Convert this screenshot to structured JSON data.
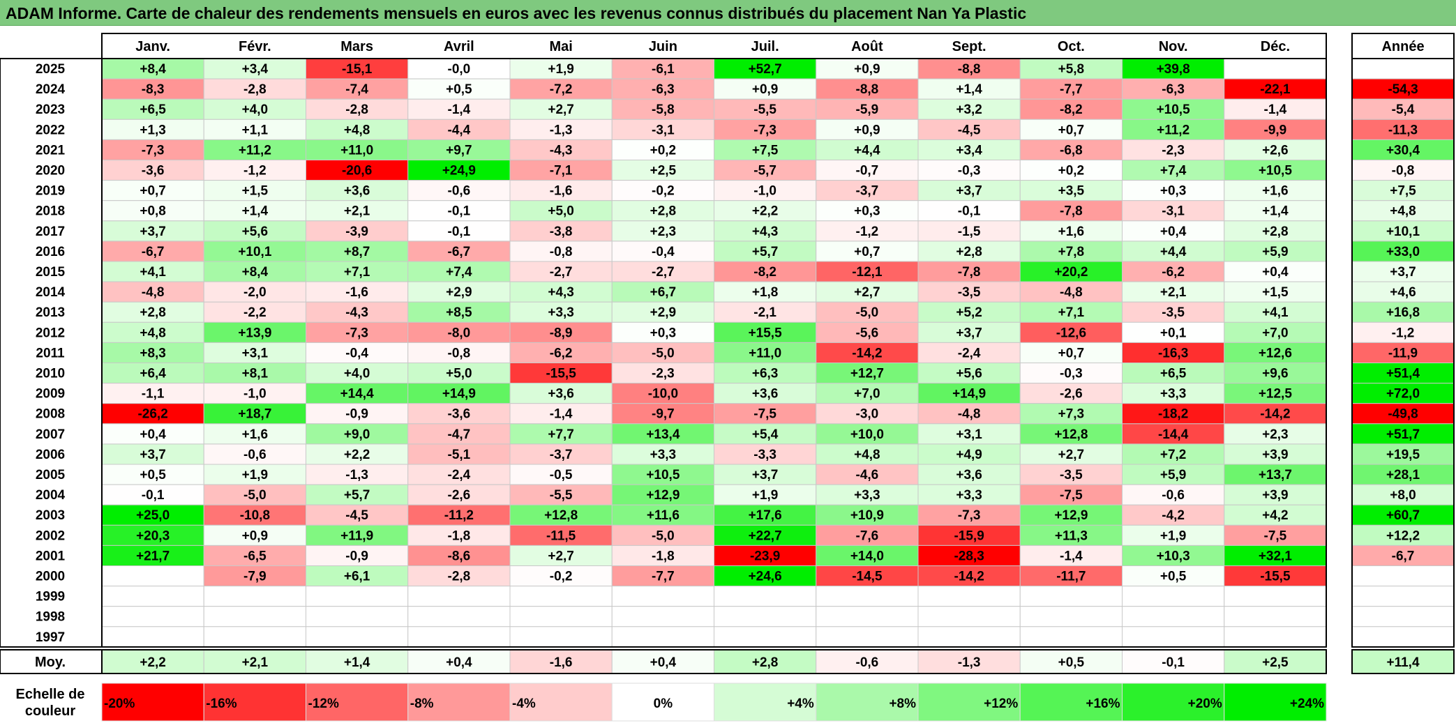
{
  "title": "ADAM Informe. Carte de chaleur des rendements mensuels en euros avec les revenus connus distribués du placement Nan Ya Plastic",
  "chart_data": {
    "type": "heatmap",
    "months": [
      "Janv.",
      "Févr.",
      "Mars",
      "Avril",
      "Mai",
      "Juin",
      "Juil.",
      "Août",
      "Sept.",
      "Oct.",
      "Nov.",
      "Déc."
    ],
    "year_header": "Année",
    "rows": [
      {
        "year": "2025",
        "values": [
          "+8,4",
          "+3,4",
          "-15,1",
          "-0,0",
          "+1,9",
          "-6,1",
          "+52,7",
          "+0,9",
          "-8,8",
          "+5,8",
          "+39,8",
          ""
        ],
        "annual": ""
      },
      {
        "year": "2024",
        "values": [
          "-8,3",
          "-2,8",
          "-7,4",
          "+0,5",
          "-7,2",
          "-6,3",
          "+0,9",
          "-8,8",
          "+1,4",
          "-7,7",
          "-6,3",
          "-22,1"
        ],
        "annual": "-54,3"
      },
      {
        "year": "2023",
        "values": [
          "+6,5",
          "+4,0",
          "-2,8",
          "-1,4",
          "+2,7",
          "-5,8",
          "-5,5",
          "-5,9",
          "+3,2",
          "-8,2",
          "+10,5",
          "-1,4"
        ],
        "annual": "-5,4"
      },
      {
        "year": "2022",
        "values": [
          "+1,3",
          "+1,1",
          "+4,8",
          "-4,4",
          "-1,3",
          "-3,1",
          "-7,3",
          "+0,9",
          "-4,5",
          "+0,7",
          "+11,2",
          "-9,9"
        ],
        "annual": "-11,3"
      },
      {
        "year": "2021",
        "values": [
          "-7,3",
          "+11,2",
          "+11,0",
          "+9,7",
          "-4,3",
          "+0,2",
          "+7,5",
          "+4,4",
          "+3,4",
          "-6,8",
          "-2,3",
          "+2,6"
        ],
        "annual": "+30,4"
      },
      {
        "year": "2020",
        "values": [
          "-3,6",
          "-1,2",
          "-20,6",
          "+24,9",
          "-7,1",
          "+2,5",
          "-5,7",
          "-0,7",
          "-0,3",
          "+0,2",
          "+7,4",
          "+10,5"
        ],
        "annual": "-0,8"
      },
      {
        "year": "2019",
        "values": [
          "+0,7",
          "+1,5",
          "+3,6",
          "-0,6",
          "-1,6",
          "-0,2",
          "-1,0",
          "-3,7",
          "+3,7",
          "+3,5",
          "+0,3",
          "+1,6"
        ],
        "annual": "+7,5"
      },
      {
        "year": "2018",
        "values": [
          "+0,8",
          "+1,4",
          "+2,1",
          "-0,1",
          "+5,0",
          "+2,8",
          "+2,2",
          "+0,3",
          "-0,1",
          "-7,8",
          "-3,1",
          "+1,4"
        ],
        "annual": "+4,8"
      },
      {
        "year": "2017",
        "values": [
          "+3,7",
          "+5,6",
          "-3,9",
          "-0,1",
          "-3,8",
          "+2,3",
          "+4,3",
          "-1,2",
          "-1,5",
          "+1,6",
          "+0,4",
          "+2,8"
        ],
        "annual": "+10,1"
      },
      {
        "year": "2016",
        "values": [
          "-6,7",
          "+10,1",
          "+8,7",
          "-6,7",
          "-0,8",
          "-0,4",
          "+5,7",
          "+0,7",
          "+2,8",
          "+7,8",
          "+4,4",
          "+5,9"
        ],
        "annual": "+33,0"
      },
      {
        "year": "2015",
        "values": [
          "+4,1",
          "+8,4",
          "+7,1",
          "+7,4",
          "-2,7",
          "-2,7",
          "-8,2",
          "-12,1",
          "-7,8",
          "+20,2",
          "-6,2",
          "+0,4"
        ],
        "annual": "+3,7"
      },
      {
        "year": "2014",
        "values": [
          "-4,8",
          "-2,0",
          "-1,6",
          "+2,9",
          "+4,3",
          "+6,7",
          "+1,8",
          "+2,7",
          "-3,5",
          "-4,8",
          "+2,1",
          "+1,5"
        ],
        "annual": "+4,6"
      },
      {
        "year": "2013",
        "values": [
          "+2,8",
          "-2,2",
          "-4,3",
          "+8,5",
          "+3,3",
          "+2,9",
          "-2,1",
          "-5,0",
          "+5,2",
          "+7,1",
          "-3,5",
          "+4,1"
        ],
        "annual": "+16,8"
      },
      {
        "year": "2012",
        "values": [
          "+4,8",
          "+13,9",
          "-7,3",
          "-8,0",
          "-8,9",
          "+0,3",
          "+15,5",
          "-5,6",
          "+3,7",
          "-12,6",
          "+0,1",
          "+7,0"
        ],
        "annual": "-1,2"
      },
      {
        "year": "2011",
        "values": [
          "+8,3",
          "+3,1",
          "-0,4",
          "-0,8",
          "-6,2",
          "-5,0",
          "+11,0",
          "-14,2",
          "-2,4",
          "+0,7",
          "-16,3",
          "+12,6"
        ],
        "annual": "-11,9"
      },
      {
        "year": "2010",
        "values": [
          "+6,4",
          "+8,1",
          "+4,0",
          "+5,0",
          "-15,5",
          "-2,3",
          "+6,3",
          "+12,7",
          "+5,6",
          "-0,3",
          "+6,5",
          "+9,6"
        ],
        "annual": "+51,4"
      },
      {
        "year": "2009",
        "values": [
          "-1,1",
          "-1,0",
          "+14,4",
          "+14,9",
          "+3,6",
          "-10,0",
          "+3,6",
          "+7,0",
          "+14,9",
          "-2,6",
          "+3,3",
          "+12,5"
        ],
        "annual": "+72,0"
      },
      {
        "year": "2008",
        "values": [
          "-26,2",
          "+18,7",
          "-0,9",
          "-3,6",
          "-1,4",
          "-9,7",
          "-7,5",
          "-3,0",
          "-4,8",
          "+7,3",
          "-18,2",
          "-14,2"
        ],
        "annual": "-49,8"
      },
      {
        "year": "2007",
        "values": [
          "+0,4",
          "+1,6",
          "+9,0",
          "-4,7",
          "+7,7",
          "+13,4",
          "+5,4",
          "+10,0",
          "+3,1",
          "+12,8",
          "-14,4",
          "+2,3"
        ],
        "annual": "+51,7"
      },
      {
        "year": "2006",
        "values": [
          "+3,7",
          "-0,6",
          "+2,2",
          "-5,1",
          "-3,7",
          "+3,3",
          "-3,3",
          "+4,8",
          "+4,9",
          "+2,7",
          "+7,2",
          "+3,9"
        ],
        "annual": "+19,5"
      },
      {
        "year": "2005",
        "values": [
          "+0,5",
          "+1,9",
          "-1,3",
          "-2,4",
          "-0,5",
          "+10,5",
          "+3,7",
          "-4,6",
          "+3,6",
          "-3,5",
          "+5,9",
          "+13,7"
        ],
        "annual": "+28,1"
      },
      {
        "year": "2004",
        "values": [
          "-0,1",
          "-5,0",
          "+5,7",
          "-2,6",
          "-5,5",
          "+12,9",
          "+1,9",
          "+3,3",
          "+3,3",
          "-7,5",
          "-0,6",
          "+3,9"
        ],
        "annual": "+8,0"
      },
      {
        "year": "2003",
        "values": [
          "+25,0",
          "-10,8",
          "-4,5",
          "-11,2",
          "+12,8",
          "+11,6",
          "+17,6",
          "+10,9",
          "-7,3",
          "+12,9",
          "-4,2",
          "+4,2"
        ],
        "annual": "+60,7"
      },
      {
        "year": "2002",
        "values": [
          "+20,3",
          "+0,9",
          "+11,9",
          "-1,8",
          "-11,5",
          "-5,0",
          "+22,7",
          "-7,6",
          "-15,9",
          "+11,3",
          "+1,9",
          "-7,5"
        ],
        "annual": "+12,2"
      },
      {
        "year": "2001",
        "values": [
          "+21,7",
          "-6,5",
          "-0,9",
          "-8,6",
          "+2,7",
          "-1,8",
          "-23,9",
          "+14,0",
          "-28,3",
          "-1,4",
          "+10,3",
          "+32,1"
        ],
        "annual": "-6,7"
      },
      {
        "year": "2000",
        "values": [
          "",
          "-7,9",
          "+6,1",
          "-2,8",
          "-0,2",
          "-7,7",
          "+24,6",
          "-14,5",
          "-14,2",
          "-11,7",
          "+0,5",
          "-15,5"
        ],
        "annual": ""
      },
      {
        "year": "1999",
        "values": [
          "",
          "",
          "",
          "",
          "",
          "",
          "",
          "",
          "",
          "",
          "",
          ""
        ],
        "annual": ""
      },
      {
        "year": "1998",
        "values": [
          "",
          "",
          "",
          "",
          "",
          "",
          "",
          "",
          "",
          "",
          "",
          ""
        ],
        "annual": ""
      },
      {
        "year": "1997",
        "values": [
          "",
          "",
          "",
          "",
          "",
          "",
          "",
          "",
          "",
          "",
          "",
          ""
        ],
        "annual": ""
      }
    ],
    "average": {
      "label": "Moy.",
      "values": [
        "+2,2",
        "+2,1",
        "+1,4",
        "+0,4",
        "-1,6",
        "+0,4",
        "+2,8",
        "-0,6",
        "-1,3",
        "+0,5",
        "-0,1",
        "+2,5"
      ],
      "annual": "+11,4"
    },
    "scale": {
      "label_line1": "Echelle de",
      "label_line2": "couleur",
      "steps": [
        {
          "label": "-20%",
          "value": -20
        },
        {
          "label": "-16%",
          "value": -16
        },
        {
          "label": "-12%",
          "value": -12
        },
        {
          "label": "-8%",
          "value": -8
        },
        {
          "label": "-4%",
          "value": -4
        },
        {
          "label": "0%",
          "value": 0
        },
        {
          "label": "+4%",
          "value": 4
        },
        {
          "label": "+8%",
          "value": 8
        },
        {
          "label": "+12%",
          "value": 12
        },
        {
          "label": "+16%",
          "value": 16
        },
        {
          "label": "+20%",
          "value": 20
        },
        {
          "label": "+24%",
          "value": 24
        }
      ]
    }
  }
}
